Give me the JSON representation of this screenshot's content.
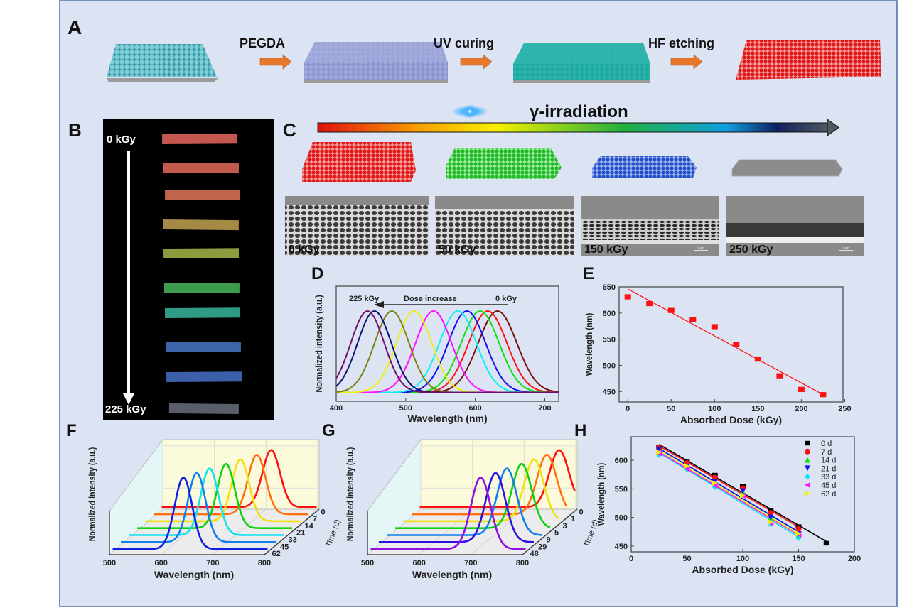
{
  "panels": {
    "A": {
      "label": "A",
      "steps": [
        "PEGDA",
        "UV curing",
        "HF etching"
      ]
    },
    "B": {
      "label": "B",
      "top": "0 kGy",
      "bottom": "225 kGy",
      "strip_colors": [
        "#c4584e",
        "#c35a4c",
        "#c0644c",
        "#a58a45",
        "#8e9a3e",
        "#3e9a4e",
        "#2f9a86",
        "#3a66a8",
        "#3b5fa8",
        "#5a5e6a"
      ]
    },
    "C": {
      "label": "C",
      "title": "γ-irradiation",
      "gradient": [
        "#e01010",
        "#f8a000",
        "#f8f000",
        "#30b040",
        "#10a0e0",
        "#102060",
        "#505860"
      ],
      "sem": [
        {
          "dose": "0 kGy"
        },
        {
          "dose": "50 kGy"
        },
        {
          "dose": "150 kGy",
          "scale": "1 μm"
        },
        {
          "dose": "250 kGy",
          "scale": "1 μm"
        }
      ],
      "slab_colors": [
        "#d42020",
        "#28c030",
        "#2050c8",
        "#909090"
      ]
    },
    "D": {
      "label": "D"
    },
    "E": {
      "label": "E"
    },
    "F": {
      "label": "F"
    },
    "G": {
      "label": "G"
    },
    "H": {
      "label": "H"
    }
  },
  "chart_data": [
    {
      "id": "D",
      "type": "line",
      "xlabel": "Wavelength (nm)",
      "ylabel": "Normalized intensity (a.u.)",
      "xlim": [
        400,
        720
      ],
      "xticks": [
        "400",
        "500",
        "600",
        "700"
      ],
      "annotation": {
        "left": "225 kGy",
        "middle": "Dose increase",
        "right": "0 kGy"
      },
      "series": [
        {
          "peak_nm": 632,
          "color": "#7a1010"
        },
        {
          "peak_nm": 618,
          "color": "#ff1010"
        },
        {
          "peak_nm": 607,
          "color": "#10e010"
        },
        {
          "peak_nm": 588,
          "color": "#1010f0"
        },
        {
          "peak_nm": 575,
          "color": "#10f0f0"
        },
        {
          "peak_nm": 540,
          "color": "#ff10ff"
        },
        {
          "peak_nm": 512,
          "color": "#f0f010"
        },
        {
          "peak_nm": 480,
          "color": "#808010"
        },
        {
          "peak_nm": 455,
          "color": "#101070"
        },
        {
          "peak_nm": 445,
          "color": "#701070"
        }
      ]
    },
    {
      "id": "E",
      "type": "scatter",
      "xlabel": "Absorbed Dose (kGy)",
      "ylabel": "Wavelength (nm)",
      "xlim": [
        -10,
        248
      ],
      "ylim": [
        430,
        650
      ],
      "xticks": [
        0,
        50,
        100,
        150,
        200,
        250
      ],
      "yticks": [
        450,
        500,
        550,
        600,
        650
      ],
      "x": [
        0,
        25,
        50,
        75,
        100,
        125,
        150,
        175,
        200,
        225
      ],
      "y": [
        631,
        618,
        605,
        588,
        574,
        540,
        512,
        480,
        454,
        444
      ],
      "fit": {
        "x": [
          0,
          225
        ],
        "y": [
          646,
          444
        ]
      },
      "color": "#ff1010"
    },
    {
      "id": "F",
      "type": "line",
      "xlabel": "Wavelength (nm)",
      "ylabel": "Normalized intensity (a.u.)",
      "zlabel": "Time (d)",
      "xticks": [
        500,
        600,
        700,
        800
      ],
      "series": [
        {
          "name": "0",
          "peak_nm": 712,
          "color": "#ff1010"
        },
        {
          "name": "7",
          "peak_nm": 700,
          "color": "#ff7010"
        },
        {
          "name": "14",
          "peak_nm": 684,
          "color": "#f0e010"
        },
        {
          "name": "21",
          "peak_nm": 672,
          "color": "#10d010"
        },
        {
          "name": "33",
          "peak_nm": 656,
          "color": "#10e0f0"
        },
        {
          "name": "45",
          "peak_nm": 647,
          "color": "#1080f0"
        },
        {
          "name": "62",
          "peak_nm": 637,
          "color": "#1020e0"
        }
      ]
    },
    {
      "id": "G",
      "type": "line",
      "xlabel": "Wavelength (nm)",
      "ylabel": "Normalized intensity (a.u.)",
      "zlabel": "Time (d)",
      "xticks": [
        500,
        600,
        700,
        800
      ],
      "series": [
        {
          "name": "0",
          "peak_nm": 770,
          "color": "#ff1010"
        },
        {
          "name": "1",
          "peak_nm": 762,
          "color": "#ff7010"
        },
        {
          "name": "3",
          "peak_nm": 753,
          "color": "#f0e010"
        },
        {
          "name": "5",
          "peak_nm": 745,
          "color": "#10d010"
        },
        {
          "name": "9",
          "peak_nm": 732,
          "color": "#1080f0"
        },
        {
          "name": "29",
          "peak_nm": 726,
          "color": "#3010e0"
        },
        {
          "name": "48",
          "peak_nm": 713,
          "color": "#9010e0"
        }
      ]
    },
    {
      "id": "H",
      "type": "scatter",
      "xlabel": "Absorbed Dose (kGy)",
      "ylabel": "Wavelength (nm)",
      "xlim": [
        0,
        200
      ],
      "ylim": [
        440,
        641
      ],
      "xticks": [
        0,
        50,
        100,
        150,
        200
      ],
      "yticks": [
        450,
        500,
        550,
        600
      ],
      "legend": "top-right",
      "series": [
        {
          "name": "0 d",
          "marker": "square",
          "color": "#000000",
          "x": [
            25,
            50,
            75,
            100,
            125,
            150,
            175
          ],
          "y": [
            623,
            597,
            574,
            555,
            512,
            484,
            455
          ]
        },
        {
          "name": "7 d",
          "marker": "circle",
          "color": "#ff1010",
          "x": [
            25,
            50,
            75,
            100,
            125,
            150
          ],
          "y": [
            622,
            595,
            570,
            551,
            508,
            480
          ]
        },
        {
          "name": "14 d",
          "marker": "triangle-up",
          "color": "#10e010",
          "x": [
            25,
            50,
            75,
            100,
            125,
            150
          ],
          "y": [
            617,
            590,
            563,
            545,
            500,
            470
          ]
        },
        {
          "name": "21 d",
          "marker": "triangle-down",
          "color": "#1010f0",
          "x": [
            25,
            50,
            75,
            100,
            125,
            150
          ],
          "y": [
            619,
            588,
            562,
            546,
            500,
            471
          ]
        },
        {
          "name": "33 d",
          "marker": "diamond",
          "color": "#10e0f0",
          "x": [
            25,
            50,
            75,
            100,
            125,
            150
          ],
          "y": [
            609,
            584,
            553,
            538,
            488,
            464
          ]
        },
        {
          "name": "45 d",
          "marker": "triangle-left",
          "color": "#ff10ff",
          "x": [
            25,
            50,
            75,
            100,
            125,
            150
          ],
          "y": [
            612,
            585,
            556,
            538,
            490,
            470
          ]
        },
        {
          "name": "62 d",
          "marker": "triangle-right",
          "color": "#f0f010",
          "x": [
            25,
            50,
            75,
            100,
            125,
            150
          ],
          "y": [
            614,
            590,
            560,
            538,
            492,
            472
          ]
        }
      ]
    }
  ]
}
